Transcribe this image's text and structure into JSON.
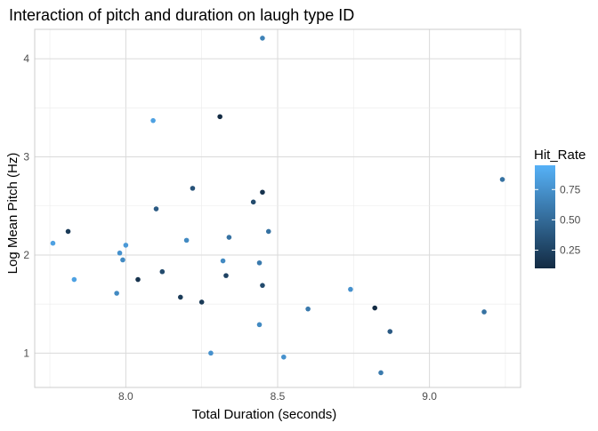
{
  "chart_data": {
    "type": "scatter",
    "title": "Interaction of pitch and duration on laugh type ID",
    "xlabel": "Total Duration (seconds)",
    "ylabel": "Log Mean Pitch (Hz)",
    "xlim": [
      7.7,
      9.3
    ],
    "ylim": [
      0.65,
      4.3
    ],
    "x_ticks": [
      8.0,
      8.5,
      9.0
    ],
    "x_tick_labels": [
      "8.0",
      "8.5",
      "9.0"
    ],
    "y_ticks": [
      1,
      2,
      3,
      4
    ],
    "y_tick_labels": [
      "1",
      "2",
      "3",
      "4"
    ],
    "grid": true,
    "legend": {
      "title": "Hit_Rate",
      "position": "right",
      "type": "colorbar",
      "range": [
        0.1,
        0.95
      ],
      "ticks": [
        0.25,
        0.5,
        0.75
      ],
      "tick_labels": [
        "0.25",
        "0.50",
        "0.75"
      ],
      "color_low": "#132B43",
      "color_high": "#56B1F7"
    },
    "points": [
      {
        "x": 7.76,
        "y": 2.12,
        "hit_rate": 0.85
      },
      {
        "x": 7.81,
        "y": 2.24,
        "hit_rate": 0.2
      },
      {
        "x": 7.83,
        "y": 1.75,
        "hit_rate": 0.85
      },
      {
        "x": 7.97,
        "y": 1.61,
        "hit_rate": 0.7
      },
      {
        "x": 7.98,
        "y": 2.02,
        "hit_rate": 0.75
      },
      {
        "x": 7.99,
        "y": 1.95,
        "hit_rate": 0.7
      },
      {
        "x": 8.0,
        "y": 2.1,
        "hit_rate": 0.8
      },
      {
        "x": 8.04,
        "y": 1.75,
        "hit_rate": 0.15
      },
      {
        "x": 8.09,
        "y": 3.37,
        "hit_rate": 0.85
      },
      {
        "x": 8.1,
        "y": 2.47,
        "hit_rate": 0.4
      },
      {
        "x": 8.12,
        "y": 1.83,
        "hit_rate": 0.3
      },
      {
        "x": 8.18,
        "y": 1.57,
        "hit_rate": 0.2
      },
      {
        "x": 8.2,
        "y": 2.15,
        "hit_rate": 0.7
      },
      {
        "x": 8.22,
        "y": 2.68,
        "hit_rate": 0.35
      },
      {
        "x": 8.25,
        "y": 1.52,
        "hit_rate": 0.2
      },
      {
        "x": 8.28,
        "y": 1.0,
        "hit_rate": 0.75
      },
      {
        "x": 8.31,
        "y": 3.41,
        "hit_rate": 0.1
      },
      {
        "x": 8.32,
        "y": 1.94,
        "hit_rate": 0.7
      },
      {
        "x": 8.33,
        "y": 1.79,
        "hit_rate": 0.25
      },
      {
        "x": 8.34,
        "y": 2.18,
        "hit_rate": 0.55
      },
      {
        "x": 8.42,
        "y": 2.54,
        "hit_rate": 0.3
      },
      {
        "x": 8.44,
        "y": 1.92,
        "hit_rate": 0.6
      },
      {
        "x": 8.44,
        "y": 1.29,
        "hit_rate": 0.7
      },
      {
        "x": 8.45,
        "y": 1.69,
        "hit_rate": 0.3
      },
      {
        "x": 8.45,
        "y": 2.64,
        "hit_rate": 0.15
      },
      {
        "x": 8.45,
        "y": 4.21,
        "hit_rate": 0.65
      },
      {
        "x": 8.47,
        "y": 2.24,
        "hit_rate": 0.55
      },
      {
        "x": 8.52,
        "y": 0.96,
        "hit_rate": 0.75
      },
      {
        "x": 8.6,
        "y": 1.45,
        "hit_rate": 0.6
      },
      {
        "x": 8.74,
        "y": 1.65,
        "hit_rate": 0.75
      },
      {
        "x": 8.82,
        "y": 1.46,
        "hit_rate": 0.1
      },
      {
        "x": 8.84,
        "y": 0.8,
        "hit_rate": 0.6
      },
      {
        "x": 8.87,
        "y": 1.22,
        "hit_rate": 0.4
      },
      {
        "x": 9.18,
        "y": 1.42,
        "hit_rate": 0.55
      },
      {
        "x": 9.24,
        "y": 2.77,
        "hit_rate": 0.55
      }
    ]
  }
}
